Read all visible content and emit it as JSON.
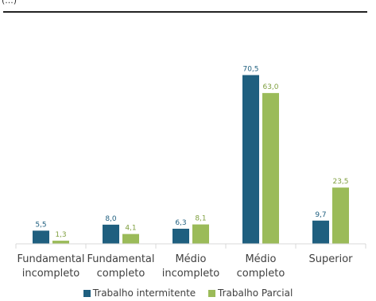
{
  "header_fragment": "(...)",
  "chart_data": {
    "type": "bar",
    "categories": [
      [
        "Fundamental",
        "incompleto"
      ],
      [
        "Fundamental",
        "completo"
      ],
      [
        "Médio",
        "incompleto"
      ],
      [
        "Médio",
        "completo"
      ],
      [
        "Superior"
      ]
    ],
    "series": [
      {
        "name": "Trabalho intermitente",
        "color": "#1f5f7f",
        "values": [
          5.5,
          8.0,
          6.3,
          70.5,
          9.7
        ],
        "labels": [
          "5,5",
          "8,0",
          "6,3",
          "70,5",
          "9,7"
        ]
      },
      {
        "name": "Trabalho Parcial",
        "color": "#9bbb59",
        "values": [
          1.3,
          4.1,
          8.1,
          63.0,
          23.5
        ],
        "labels": [
          "1,3",
          "4,1",
          "8,1",
          "63,0",
          "23,5"
        ]
      }
    ],
    "title": "",
    "xlabel": "",
    "ylabel": "",
    "ylim": [
      0,
      74
    ],
    "grid": false,
    "legend_position": "bottom"
  }
}
